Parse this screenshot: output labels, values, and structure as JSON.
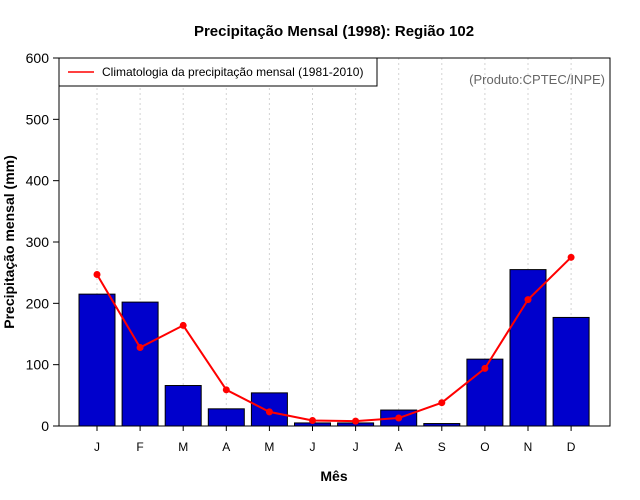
{
  "chart_data": {
    "type": "bar",
    "title": "Precipitação Mensal (1998): Região 102",
    "xlabel": "Mês",
    "ylabel": "Precipitação mensal (mm)",
    "categories": [
      "J",
      "F",
      "M",
      "A",
      "M",
      "J",
      "J",
      "A",
      "S",
      "O",
      "N",
      "D"
    ],
    "ylim": [
      0,
      600
    ],
    "yticks": [
      0,
      100,
      200,
      300,
      400,
      500,
      600
    ],
    "grid": "vertical-dotted",
    "series": [
      {
        "name": "Precipitação mensal 1998",
        "type": "bar",
        "color": "#0000cc",
        "values": [
          215,
          202,
          66,
          28,
          54,
          5,
          5,
          26,
          4,
          109,
          255,
          177
        ]
      },
      {
        "name": "Climatologia da precipitação mensal (1981-2010)",
        "type": "line",
        "color": "#ff0000",
        "values": [
          247,
          128,
          164,
          59,
          23,
          9,
          8,
          13,
          38,
          94,
          206,
          275
        ]
      }
    ],
    "legend": {
      "position": "top-left",
      "label": "Climatologia da precipitação mensal (1981-2010)"
    },
    "source_note": "(Produto:CPTEC/INPE)"
  }
}
